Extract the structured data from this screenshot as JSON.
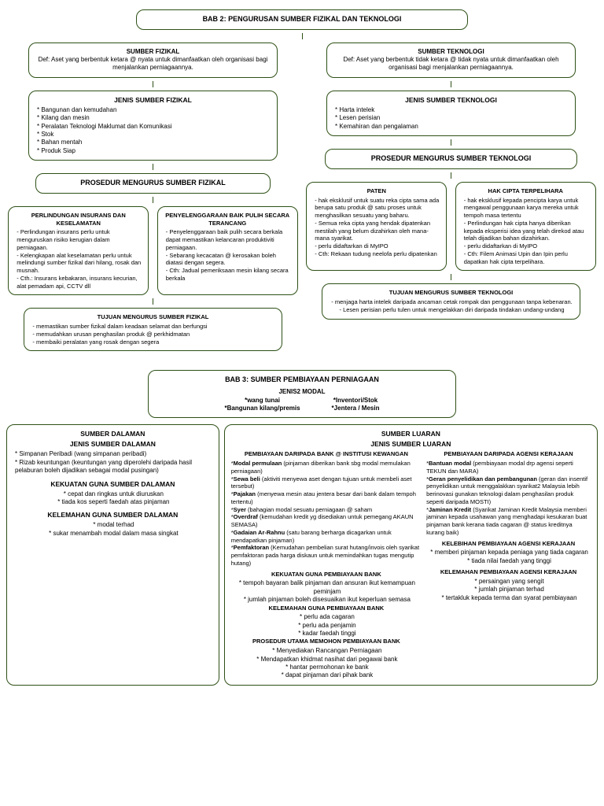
{
  "colors": {
    "border": "#2d5016",
    "background": "#ffffff",
    "text": "#000000"
  },
  "bab2": {
    "title": "BAB 2: PENGURUSAN SUMBER FIZIKAL DAN TEKNOLOGI",
    "fizikal": {
      "heading": "SUMBER FIZIKAL",
      "def": "Def: Aset yang berbentuk ketara @ nyata untuk dimanfaatkan oleh organisasi bagi menjalankan perniagaannya.",
      "jenis_title": "JENIS SUMBER FIZIKAL",
      "jenis": [
        "Bangunan dan kemudahan",
        "Kilang dan mesin",
        "Peralatan Teknologi Maklumat dan Komunikasi",
        "Stok",
        "Bahan mentah",
        "Produk Siap"
      ],
      "prosedur_title": "PROSEDUR MENGURUS SUMBER FIZIKAL",
      "insurans": {
        "title": "PERLINDUNGAN INSURANS DAN KESELAMATAN",
        "items": [
          "Perlindungan insurans perlu untuk menguruskan risiko kerugian dalam perniagaan.",
          "Kelengkapan alat keselamatan perlu untuk melindungi sumber fizikal dari hilang, rosak dan musnah.",
          "Cth.: Insurans kebakaran, insurans kecurian, alat pemadam api, CCTV dll"
        ]
      },
      "penyelenggaraan": {
        "title": "PENYELENGGARAAN BAIK PULIH SECARA TERANCANG",
        "items": [
          "Penyelenggaraan baik pulih secara berkala dapat memastikan kelancaran produktiviti perniagaan.",
          "Sebarang kecacatan @ kerosakan boleh diatasi dengan segera.",
          "Cth: Jadual pemeriksaan mesin kilang secara berkala"
        ]
      },
      "tujuan": {
        "title": "TUJUAN MENGURUS SUMBER FIZIKAL",
        "items": [
          "memastikan sumber fizikal dalam keadaan selamat dan berfungsi",
          "memudahkan urusan penghasilan produk @ perkhidmatan",
          "membaiki peralatan yang rosak dengan segera"
        ]
      }
    },
    "teknologi": {
      "heading": "SUMBER TEKNOLOGI",
      "def": "Def: Aset yang berbentuk tidak ketara @ tidak nyata untuk dimanfaatkan oleh organisasi bagi menjalankan perniagaannya.",
      "jenis_title": "JENIS SUMBER TEKNOLOGI",
      "jenis": [
        "Harta intelek",
        "Lesen perisian",
        "Kemahiran dan pengalaman"
      ],
      "prosedur_title": "PROSEDUR MENGURUS SUMBER TEKNOLOGI",
      "paten": {
        "title": "PATEN",
        "items": [
          "hak eksklusif untuk suatu reka cipta sama ada berupa satu produk @ satu proses untuk menghasilkan sesuatu yang baharu.",
          "Semua reka cipta yang hendak dipatenkan mestilah yang belum dizahirkan oleh mana-mana syarikat.",
          "perlu didaftarkan di MyIPO",
          "Cth: Rekaan tudung neelofa perlu dipatenkan"
        ]
      },
      "hakcipta": {
        "title": "HAK CIPTA TERPELIHARA",
        "items": [
          "hak eksklusif kepada pencipta karya untuk mengawal penggunaan karya mereka untuk tempoh masa tertentu",
          "Perlindungan hak cipta hanya diberikan kepada eksperisi idea yang telah direkod atau telah dijadikan bahan dizahirkan.",
          "perlu didaftarkan di MyIPO",
          "Cth: Filem Animasi Upin dan Ipin perlu dapatkan hak cipta terpelihara."
        ]
      },
      "tujuan": {
        "title": "TUJUAN MENGURUS SUMBER TEKNOLOGI",
        "items": [
          "menjaga harta intelek daripada ancaman cetak rompak dan penggunaan tanpa kebenaran.",
          "Lesen perisian perlu tulen untuk mengelakkan diri daripada tindakan undang-undang"
        ]
      }
    }
  },
  "bab3": {
    "title": "BAB 3: SUMBER PEMBIAYAAN PERNIAGAAN",
    "jenis_title": "JENIS2 MODAL",
    "jenis_left": [
      "wang tunai",
      "Bangunan kilang/premis"
    ],
    "jenis_right": [
      "Inventori/Stok",
      "Jentera / Mesin"
    ],
    "dalaman": {
      "heading": "SUMBER DALAMAN",
      "jenis_title": "JENIS SUMBER DALAMAN",
      "jenis": [
        "Simpanan Peribadi (wang simpanan peribadi)",
        "Rizab keuntungan (keuntungan yang diperolehi daripada hasil pelaburan boleh dijadikan sebagai modal pusingan)"
      ],
      "kekuatan_title": "KEKUATAN GUNA SUMBER DALAMAN",
      "kekuatan": [
        "cepat dan ringkas untuk diuruskan",
        "tiada kos seperti faedah atas pinjaman"
      ],
      "kelemahan_title": "KELEMAHAN GUNA SUMBER DALAMAN",
      "kelemahan": [
        "modal terhad",
        "sukar menambah modal dalam masa singkat"
      ]
    },
    "luaran": {
      "heading": "SUMBER LUARAN",
      "jenis_title": "JENIS SUMBER LUARAN",
      "bank": {
        "title": "PEMBIAYAAN DARIPADA BANK @ INSTITUSI KEWANGAN",
        "items": [
          {
            "b": "Modal permulaan",
            "t": " (pinjaman diberikan bank sbg modal memulakan perniagaan)"
          },
          {
            "b": "Sewa beli",
            "t": " (aktiviti menyewa aset dengan tujuan untuk membeli aset tersebut)"
          },
          {
            "b": "Pajakan",
            "t": " (menyewa mesin atau jentera besar dari bank dalam tempoh tertentu)"
          },
          {
            "b": "Syer",
            "t": " (bahagian modal sesuatu perniagaan @ saham"
          },
          {
            "b": "Overdraf",
            "t": " (kemudahan kredit yg disediakan untuk pemegang AKAUN SEMASA)"
          },
          {
            "b": "Gadaian Ar-Rahnu",
            "t": " (satu barang berharga dicagarkan untuk mendapatkan pinjaman)"
          },
          {
            "b": "Pemfaktoran",
            "t": " (Kemudahan pembelian surat hutang/invois oleh syarikat pemfaktoran pada harga diskaun untuk memindahkan tugas mengutip hutang)"
          }
        ],
        "kekuatan_title": "KEKUATAN GUNA PEMBIAYAAN BANK",
        "kekuatan": [
          "tempoh bayaran balik pinjaman dan ansuran ikut kemampuan peminjam",
          "jumlah pinjaman boleh disesuaikan ikut keperluan semasa"
        ],
        "kelemahan_title": "KELEMAHAN GUNA PEMBIAYAAN BANK",
        "kelemahan": [
          "perlu ada cagaran",
          "perlu ada penjamin",
          "kadar faedah tinggi"
        ],
        "prosedur_title": "PROSEDUR UTAMA MEMOHON PEMBIAYAAN BANK",
        "prosedur": [
          "Menyediakan Rancangan Perniagaan",
          "Mendapatkan khidmat nasihat dari pegawai bank",
          "hantar permohonan ke bank",
          "dapat pinjaman dari pihak bank"
        ]
      },
      "agensi": {
        "title": "PEMBIAYAAN DARIPADA AGENSI KERAJAAN",
        "items": [
          {
            "b": "Bantuan modal",
            "t": " (pembiayaan modal drp agensi seperti TEKUN dan MARA)"
          },
          {
            "b": "Geran penyelidikan dan pembangunan",
            "t": " (geran dan insentif penyelidikan untuk menggalakkan syarikat2 Malaysia lebih berinovasi gunakan teknologi dalam penghasilan produk seperti daripada MOSTI)"
          },
          {
            "b": "Jaminan Kredit",
            "t": " (Syarikat Jaminan Kredit Malaysia memberi jaminan kepada usahawan yang menghadapi kesukaran buat pinjaman bank kerana tiada cagaran @ status kreditnya kurang baik)"
          }
        ],
        "kelebihan_title": "KELEBIHAN PEMBIAYAAN AGENSI KERAJAAN",
        "kelebihan": [
          "memberi pinjaman kepada peniaga yang tiada cagaran",
          "tiada nilai faedah yang tinggi"
        ],
        "kelemahan_title": "KELEMAHAN PEMBIAYAAN AGENSI KERAJAAN",
        "kelemahan": [
          "persaingan yang sengit",
          "jumlah pinjaman terhad",
          "tertakluk kepada terma dan syarat pembiayaan"
        ]
      }
    }
  }
}
